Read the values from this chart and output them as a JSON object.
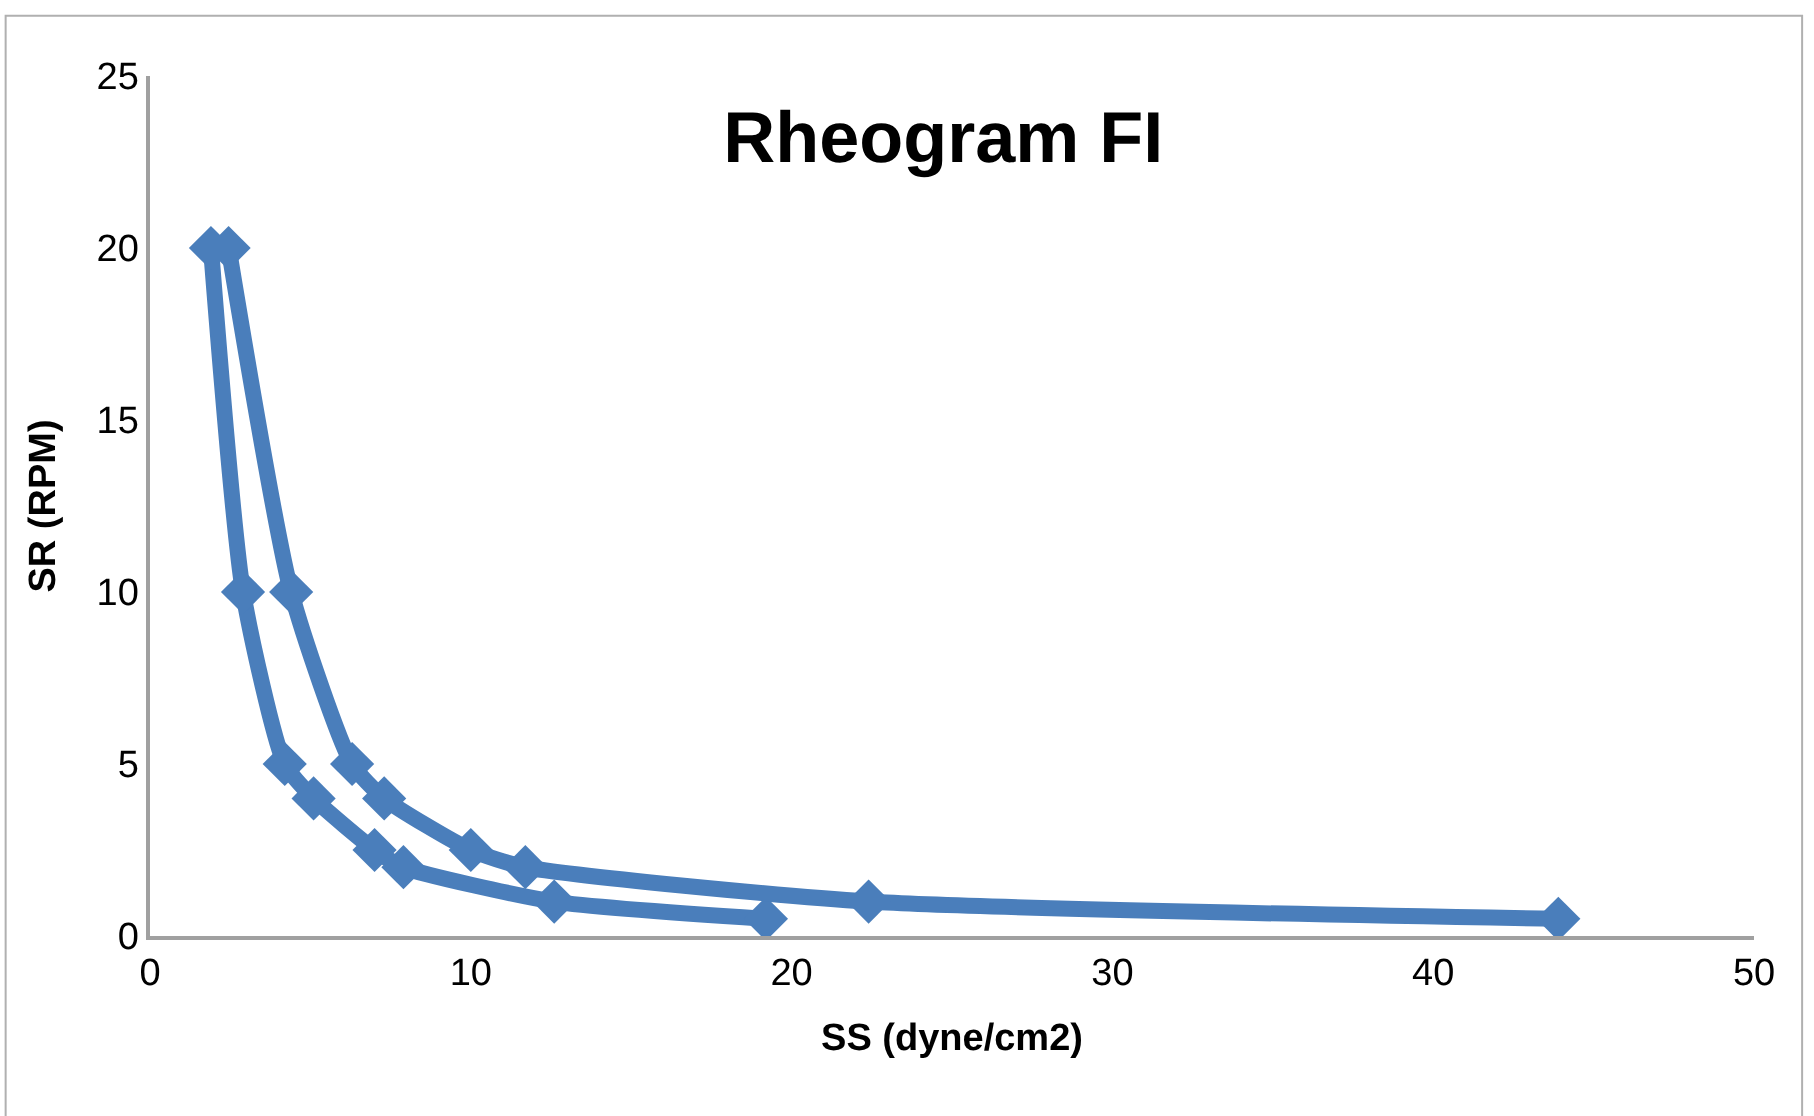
{
  "chart_data": {
    "type": "line",
    "title": "Rheogram FI",
    "xlabel": "SS (dyne/cm2)",
    "ylabel": "SR (RPM)",
    "series": [
      {
        "color": "#4a7ebb",
        "x": [
          1.9,
          2.9,
          4.2,
          5.1,
          7.0,
          7.9,
          12.6,
          19.2
        ],
        "values": [
          20,
          10,
          5,
          4,
          2.5,
          2,
          1,
          0.5
        ]
      },
      {
        "color": "#4a7ebb",
        "x": [
          2.45,
          4.4,
          6.3,
          7.3,
          10.0,
          11.7,
          22.4,
          43.9
        ],
        "values": [
          20,
          10,
          5,
          4,
          2.5,
          2,
          1,
          0.5
        ]
      }
    ],
    "xlim": [
      0,
      50
    ],
    "xticks": [
      0,
      10,
      20,
      30,
      40,
      50
    ],
    "ylim": [
      0,
      25
    ],
    "yticks": [
      0,
      5,
      10,
      15,
      20,
      25
    ],
    "marker": "diamond",
    "line_style": "solid"
  }
}
